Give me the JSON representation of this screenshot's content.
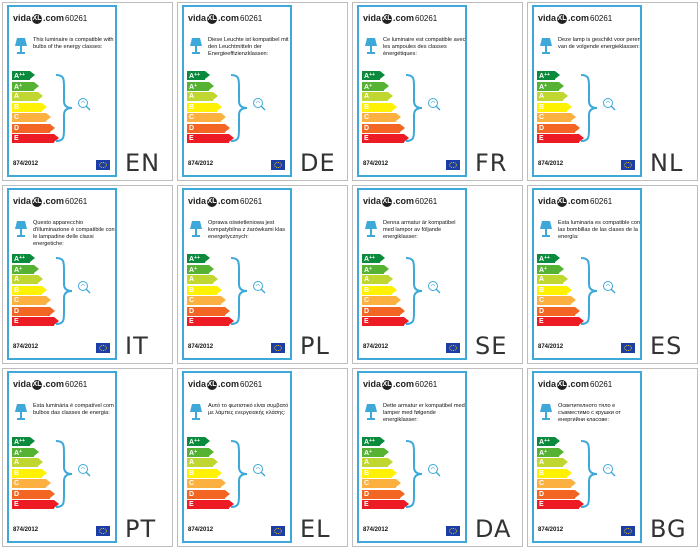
{
  "brand": {
    "name": "vida",
    "suffix": ".com",
    "mark": "XL"
  },
  "product_code": "60261",
  "regulation": "874/2012",
  "energy_classes": [
    {
      "label": "A++",
      "main": "A",
      "sup": "++",
      "color": "#0a8a3c"
    },
    {
      "label": "A+",
      "main": "A",
      "sup": "+",
      "color": "#55b233"
    },
    {
      "label": "A",
      "main": "A",
      "sup": "",
      "color": "#bfd730"
    },
    {
      "label": "B",
      "main": "B",
      "sup": "",
      "color": "#fff200"
    },
    {
      "label": "C",
      "main": "C",
      "sup": "",
      "color": "#fbb040"
    },
    {
      "label": "D",
      "main": "D",
      "sup": "",
      "color": "#f26522"
    },
    {
      "label": "E",
      "main": "E",
      "sup": "",
      "color": "#ed1c24"
    }
  ],
  "colors": {
    "label_border": "#3ea9d9",
    "brace": "#3ea9d9",
    "eu_flag": "#1a3da6"
  },
  "icons": {
    "lamp": "table-lamp-icon",
    "bulb": "light-bulb-icon",
    "flag": "eu-flag-icon"
  },
  "labels": [
    {
      "lang": "EN",
      "text": "This luminaire is compatible with bulbs of the energy classes:"
    },
    {
      "lang": "DE",
      "text": "Diese Leuchte ist kompatibel mit den Leuchtmitteln der Energieeffizienzklassen:"
    },
    {
      "lang": "FR",
      "text": "Ce luminaire est compatible avec les ampoules des classes énergétiques:"
    },
    {
      "lang": "NL",
      "text": "Deze lamp is geschikt voor peren van de volgende energieklassen:"
    },
    {
      "lang": "IT",
      "text": "Questo apparecchio d'illuminazione è compatibile con le lampadine delle classi energetiche:"
    },
    {
      "lang": "PL",
      "text": "Oprawa oświetleniowa jest kompatybilna z żarówkami klas energetycznych:"
    },
    {
      "lang": "SE",
      "text": "Denna armatur är kompatibel med lampor av följande energiklasser:"
    },
    {
      "lang": "ES",
      "text": "Esta luminaria es compatible con las bombillas de las clases de la energía:"
    },
    {
      "lang": "PT",
      "text": "Esta luminária é compatível com bulbos das classes de energia:"
    },
    {
      "lang": "EL",
      "text": "Αυτό το φωτιστικό είναι συμβατό με λάμπες ενεργειακής κλάσης:"
    },
    {
      "lang": "DA",
      "text": "Dette armatur er kompatibel med lamper med følgende energiklasser:"
    },
    {
      "lang": "BG",
      "text": "Осветителното тяло е съвместимо с крушки от енергийни класове:"
    }
  ]
}
